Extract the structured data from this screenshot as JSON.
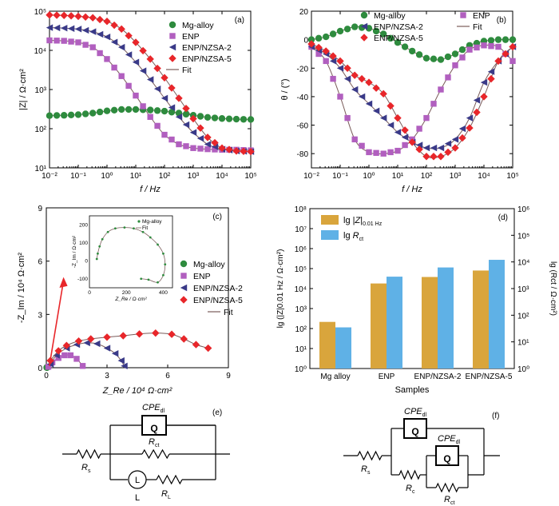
{
  "colors": {
    "mg": "#2e8b3e",
    "enp": "#b15fbf",
    "nzsa2": "#3a3a88",
    "nzsa5": "#e8262a",
    "fit": "#7a5c5a",
    "bar_z": "#d9a53c",
    "bar_r": "#5fb1e6"
  },
  "chart_data": [
    {
      "type": "scatter",
      "panel": "(a)",
      "xlabel": "f / Hz",
      "ylabel": "|Z| / Ω·cm²",
      "x_scale": "log",
      "y_scale": "log",
      "xlim": [
        0.01,
        100000
      ],
      "ylim": [
        10,
        100000
      ],
      "x_ticks": [
        "10⁻²",
        "10⁻¹",
        "10⁰",
        "10¹",
        "10²",
        "10³",
        "10⁴",
        "10⁵"
      ],
      "y_ticks": [
        "10¹",
        "10²",
        "10³",
        "10⁴",
        "10⁵"
      ],
      "legend": [
        "Mg-alloy",
        "ENP",
        "ENP/NZSA-2",
        "ENP/NZSA-5",
        "Fit"
      ],
      "legend_position": "top-right",
      "series": [
        {
          "name": "Mg-alloy",
          "marker": "circle",
          "x": [
            0.01,
            0.032,
            0.1,
            0.32,
            1,
            3.2,
            10,
            32,
            100,
            316,
            1000,
            3162,
            10000,
            31623,
            100000
          ],
          "y": [
            215,
            220,
            228,
            250,
            285,
            310,
            310,
            300,
            280,
            250,
            220,
            195,
            182,
            175,
            172
          ]
        },
        {
          "name": "ENP",
          "marker": "square",
          "x": [
            0.01,
            0.032,
            0.1,
            0.32,
            1,
            3.2,
            10,
            32,
            100,
            316,
            1000,
            3162,
            10000,
            31623,
            100000
          ],
          "y": [
            18000,
            17500,
            16000,
            12000,
            6000,
            2200,
            700,
            200,
            70,
            40,
            32,
            30,
            29,
            29,
            28
          ]
        },
        {
          "name": "ENP/NZSA-2",
          "marker": "triangle-left",
          "x": [
            0.01,
            0.032,
            0.1,
            0.32,
            1,
            3.2,
            10,
            32,
            100,
            316,
            1000,
            3162,
            10000,
            31623,
            100000
          ],
          "y": [
            38000,
            37000,
            35000,
            30000,
            22000,
            12000,
            5000,
            1800,
            600,
            200,
            80,
            40,
            30,
            27,
            26
          ]
        },
        {
          "name": "ENP/NZSA-5",
          "marker": "diamond",
          "x": [
            0.01,
            0.032,
            0.1,
            0.32,
            1,
            3.2,
            10,
            32,
            100,
            316,
            1000,
            3162,
            10000,
            31623,
            100000
          ],
          "y": [
            80000,
            78000,
            74000,
            68000,
            55000,
            35000,
            16000,
            6000,
            2000,
            600,
            180,
            60,
            32,
            27,
            26
          ]
        }
      ]
    },
    {
      "type": "scatter",
      "panel": "(b)",
      "xlabel": "f / Hz",
      "ylabel": "θ / (°)",
      "x_scale": "log",
      "xlim": [
        0.01,
        100000
      ],
      "ylim": [
        -90,
        20
      ],
      "x_ticks": [
        "10⁻²",
        "10⁻¹",
        "10⁰",
        "10¹",
        "10²",
        "10³",
        "10⁴",
        "10⁵"
      ],
      "y_ticks": [
        20,
        0,
        -20,
        -40,
        -60,
        -80
      ],
      "legend": [
        "Mg-alloy",
        "ENP",
        "ENP/NZSA-2",
        "Fit",
        "ENP/NZSA-5"
      ],
      "legend_position": "top",
      "series": [
        {
          "name": "Mg-alloy",
          "marker": "circle",
          "x": [
            0.01,
            0.032,
            0.1,
            0.32,
            1,
            3.2,
            10,
            32,
            100,
            316,
            1000,
            3162,
            10000,
            31623,
            100000
          ],
          "y": [
            0,
            2,
            6,
            9,
            8,
            4,
            -2,
            -8,
            -13,
            -14,
            -10,
            -4,
            -1,
            0,
            0
          ]
        },
        {
          "name": "ENP",
          "marker": "square",
          "x": [
            0.01,
            0.032,
            0.1,
            0.32,
            1,
            3.2,
            10,
            32,
            100,
            316,
            1000,
            3162,
            10000,
            31623,
            100000
          ],
          "y": [
            -5,
            -15,
            -40,
            -70,
            -79,
            -80,
            -78,
            -70,
            -55,
            -35,
            -18,
            -7,
            -4,
            -5,
            -15
          ]
        },
        {
          "name": "ENP/NZSA-2",
          "marker": "triangle-left",
          "x": [
            0.01,
            0.032,
            0.1,
            0.32,
            1,
            3.2,
            10,
            32,
            100,
            316,
            1000,
            3162,
            10000,
            31623,
            100000
          ],
          "y": [
            -5,
            -10,
            -20,
            -35,
            -45,
            -55,
            -65,
            -72,
            -76,
            -76,
            -70,
            -55,
            -30,
            -15,
            -5
          ]
        },
        {
          "name": "ENP/NZSA-5",
          "marker": "diamond",
          "x": [
            0.01,
            0.032,
            0.1,
            0.32,
            1,
            3.2,
            10,
            32,
            100,
            316,
            1000,
            3162,
            10000,
            31623,
            100000
          ],
          "y": [
            -3,
            -8,
            -15,
            -25,
            -30,
            -38,
            -55,
            -72,
            -82,
            -82,
            -76,
            -62,
            -40,
            -15,
            -5
          ]
        }
      ]
    },
    {
      "type": "scatter",
      "panel": "(c)",
      "xlabel": "Z_Re / 10⁴ Ω·cm²",
      "ylabel": "-Z_Im / 10⁴ Ω·cm²",
      "xlim": [
        0,
        9
      ],
      "ylim": [
        0,
        9
      ],
      "x_ticks": [
        0,
        3,
        6,
        9
      ],
      "y_ticks": [
        0,
        3,
        6,
        9
      ],
      "legend": [
        "Mg-alloy",
        "ENP",
        "ENP/NZSA-2",
        "ENP/NZSA-5",
        "Fit"
      ],
      "legend_position": "right",
      "series": [
        {
          "name": "Mg-alloy",
          "marker": "circle",
          "x": [
            0.02,
            0.03,
            0.04
          ],
          "y": [
            0.01,
            0.02,
            0.01
          ]
        },
        {
          "name": "ENP",
          "marker": "square",
          "x": [
            0.1,
            0.3,
            0.6,
            0.9,
            1.2,
            1.5,
            1.8
          ],
          "y": [
            0.05,
            0.3,
            0.55,
            0.7,
            0.7,
            0.5,
            0.1
          ]
        },
        {
          "name": "ENP/NZSA-2",
          "marker": "triangle-left",
          "x": [
            0.2,
            0.5,
            1.0,
            1.5,
            2.0,
            2.5,
            3.0,
            3.4,
            3.7,
            3.85
          ],
          "y": [
            0.2,
            0.7,
            1.1,
            1.3,
            1.4,
            1.35,
            1.1,
            0.8,
            0.4,
            0.1
          ]
        },
        {
          "name": "ENP/NZSA-5",
          "marker": "diamond",
          "x": [
            0.2,
            0.6,
            1.0,
            1.6,
            2.2,
            3.0,
            3.8,
            4.6,
            5.4,
            6.2,
            6.8,
            7.4,
            8.0
          ],
          "y": [
            0.4,
            0.95,
            1.25,
            1.5,
            1.62,
            1.72,
            1.8,
            1.9,
            1.95,
            1.88,
            1.62,
            1.3,
            1.1
          ]
        }
      ]
    },
    {
      "type": "scatter",
      "panel": "(c) inset",
      "xlabel": "Z_Re / Ω·cm²",
      "ylabel": "-Z_Im / Ω·cm²",
      "xlim": [
        0,
        450
      ],
      "ylim": [
        -150,
        250
      ],
      "x_ticks": [
        0,
        200,
        400
      ],
      "y_ticks": [
        200,
        100,
        0,
        -100
      ],
      "legend": [
        "Mg-alloy",
        "Fit"
      ],
      "legend_position": "top-right",
      "series": [
        {
          "name": "Mg-alloy",
          "marker": "circle",
          "x": [
            40,
            45,
            55,
            70,
            100,
            140,
            190,
            240,
            290,
            330,
            370,
            400,
            410,
            400,
            370,
            320,
            280
          ],
          "y": [
            10,
            40,
            80,
            120,
            160,
            180,
            185,
            180,
            160,
            130,
            90,
            40,
            -20,
            -80,
            -120,
            -105,
            -100
          ]
        }
      ]
    },
    {
      "type": "bar",
      "panel": "(d)",
      "xlabel": "Samples",
      "ylabel": "lg (|Z|₀.₀₁ Hz / Ω·cm²)",
      "ylabel_right": "lg (R_ct / Ω·cm²)",
      "y_scale": "log",
      "ylim": [
        1,
        100000000
      ],
      "y_ticks": [
        "10⁰",
        "10¹",
        "10²",
        "10³",
        "10⁴",
        "10⁵",
        "10⁶",
        "10⁷",
        "10⁸"
      ],
      "y_ticks_right": [
        "10⁰",
        "10¹",
        "10²",
        "10³",
        "10⁴",
        "10⁵",
        "10⁶"
      ],
      "legend": [
        "lg |Z|0.01 Hz",
        "lg Rct"
      ],
      "legend_position": "top-left",
      "categories": [
        "Mg alloy",
        "ENP",
        "ENP/NZSA-2",
        "ENP/NZSA-5"
      ],
      "series": [
        {
          "name": "lg |Z|0.01 Hz",
          "axis": "left",
          "values": [
            215,
            18000,
            38000,
            80000
          ]
        },
        {
          "name": "lg Rct",
          "axis": "right",
          "values": [
            35,
            2800,
            6200,
            12000
          ]
        }
      ]
    }
  ],
  "panel_labels": {
    "a": "(a)",
    "b": "(b)",
    "c": "(c)",
    "d": "(d)",
    "e": "(e)",
    "f": "(f)"
  },
  "text": {
    "a_ylabel": "|Z| / Ω·cm²",
    "ab_xlabel": "f / Hz",
    "b_ylabel": "θ / (°)",
    "c_xlabel": "Z_Re / 10⁴ Ω·cm²",
    "c_ylabel": "-Z_Im / 10⁴ Ω·cm²",
    "inset_xlabel": "Z_Re / Ω·cm²",
    "inset_ylabel": "-Z_Im / Ω·cm²",
    "d_xlabel": "Samples",
    "d_ylabel": "lg (|Z|0.01 Hz / Ω·cm²)",
    "d_ylabel_right": "lg (Rct / Ω·cm²)"
  },
  "circuits": {
    "e": {
      "cpe": "CPEdl",
      "q": "Q",
      "rct": "Rct",
      "rs": "Rs",
      "l": "L",
      "l_label": "L",
      "rl": "RL"
    },
    "f": {
      "cpe1": "CPEdl",
      "cpe2": "CPEdl",
      "q": "Q",
      "rs": "Rs",
      "rc": "Rc",
      "rct": "Rct"
    }
  }
}
